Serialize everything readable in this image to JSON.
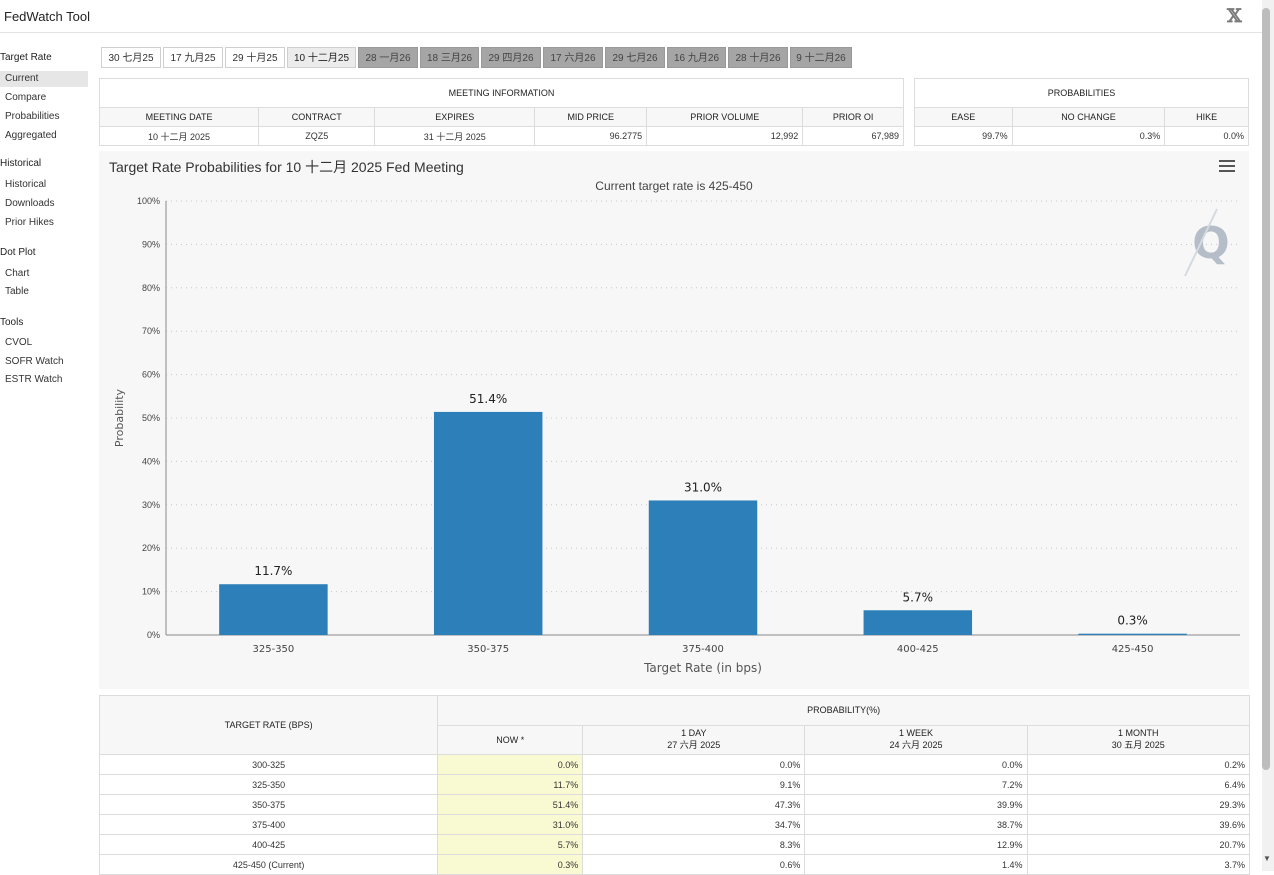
{
  "app": {
    "title": "FedWatch Tool",
    "logo": "𝕏"
  },
  "sidebar": {
    "sections": [
      {
        "heading": "Target Rate",
        "items": [
          "Current",
          "Compare",
          "Probabilities",
          "Aggregated"
        ]
      },
      {
        "heading": "Historical",
        "items": [
          "Historical",
          "Downloads",
          "Prior Hikes"
        ]
      },
      {
        "heading": "Dot Plot",
        "items": [
          "Chart",
          "Table"
        ]
      },
      {
        "heading": "Tools",
        "items": [
          "CVOL",
          "SOFR Watch",
          "ESTR Watch"
        ]
      }
    ],
    "active": "Current"
  },
  "tabs": [
    "30 七月25",
    "17 九月25",
    "29 十月25",
    "10 十二月25",
    "28 一月26",
    "18 三月26",
    "29 四月26",
    "17 六月26",
    "29 七月26",
    "16 九月26",
    "28 十月26",
    "9 十二月26"
  ],
  "meeting_info": {
    "heading": "MEETING INFORMATION",
    "headers": [
      "MEETING DATE",
      "CONTRACT",
      "EXPIRES",
      "MID PRICE",
      "PRIOR VOLUME",
      "PRIOR OI"
    ],
    "values": [
      "10 十二月 2025",
      "ZQZ5",
      "31 十二月 2025",
      "96.2775",
      "12,992",
      "67,989"
    ]
  },
  "probabilities": {
    "heading": "PROBABILITIES",
    "headers": [
      "EASE",
      "NO CHANGE",
      "HIKE"
    ],
    "values": [
      "99.7%",
      "0.3%",
      "0.0%"
    ]
  },
  "chart": {
    "title": "Target Rate Probabilities for 10 十二月 2025 Fed Meeting",
    "subtitle": "Current target rate is 425-450",
    "watermark": "Q"
  },
  "chart_data": {
    "type": "bar",
    "categories": [
      "325-350",
      "350-375",
      "375-400",
      "400-425",
      "425-450"
    ],
    "values": [
      11.7,
      51.4,
      31.0,
      5.7,
      0.3
    ],
    "data_labels": [
      "11.7%",
      "51.4%",
      "31.0%",
      "5.7%",
      "0.3%"
    ],
    "ylim": [
      0,
      100
    ],
    "yticks": [
      "0%",
      "10%",
      "20%",
      "30%",
      "40%",
      "50%",
      "60%",
      "70%",
      "80%",
      "90%",
      "100%"
    ],
    "xlabel": "Target Rate (in bps)",
    "ylabel": "Probability",
    "color": "#2c7fb8",
    "grid": true
  },
  "rate_table": {
    "col0_header": "TARGET RATE (BPS)",
    "group_header": "PROBABILITY(%)",
    "columns": [
      {
        "label": "NOW *",
        "date": ""
      },
      {
        "label": "1 DAY",
        "date": "27 六月 2025"
      },
      {
        "label": "1 WEEK",
        "date": "24 六月 2025"
      },
      {
        "label": "1 MONTH",
        "date": "30 五月 2025"
      }
    ],
    "rows": [
      [
        "300-325",
        "0.0%",
        "0.0%",
        "0.0%",
        "0.2%"
      ],
      [
        "325-350",
        "11.7%",
        "9.1%",
        "7.2%",
        "6.4%"
      ],
      [
        "350-375",
        "51.4%",
        "47.3%",
        "39.9%",
        "29.3%"
      ],
      [
        "375-400",
        "31.0%",
        "34.7%",
        "38.7%",
        "39.6%"
      ],
      [
        "400-425",
        "5.7%",
        "8.3%",
        "12.9%",
        "20.7%"
      ],
      [
        "425-450 (Current)",
        "0.3%",
        "0.6%",
        "1.4%",
        "3.7%"
      ]
    ]
  }
}
